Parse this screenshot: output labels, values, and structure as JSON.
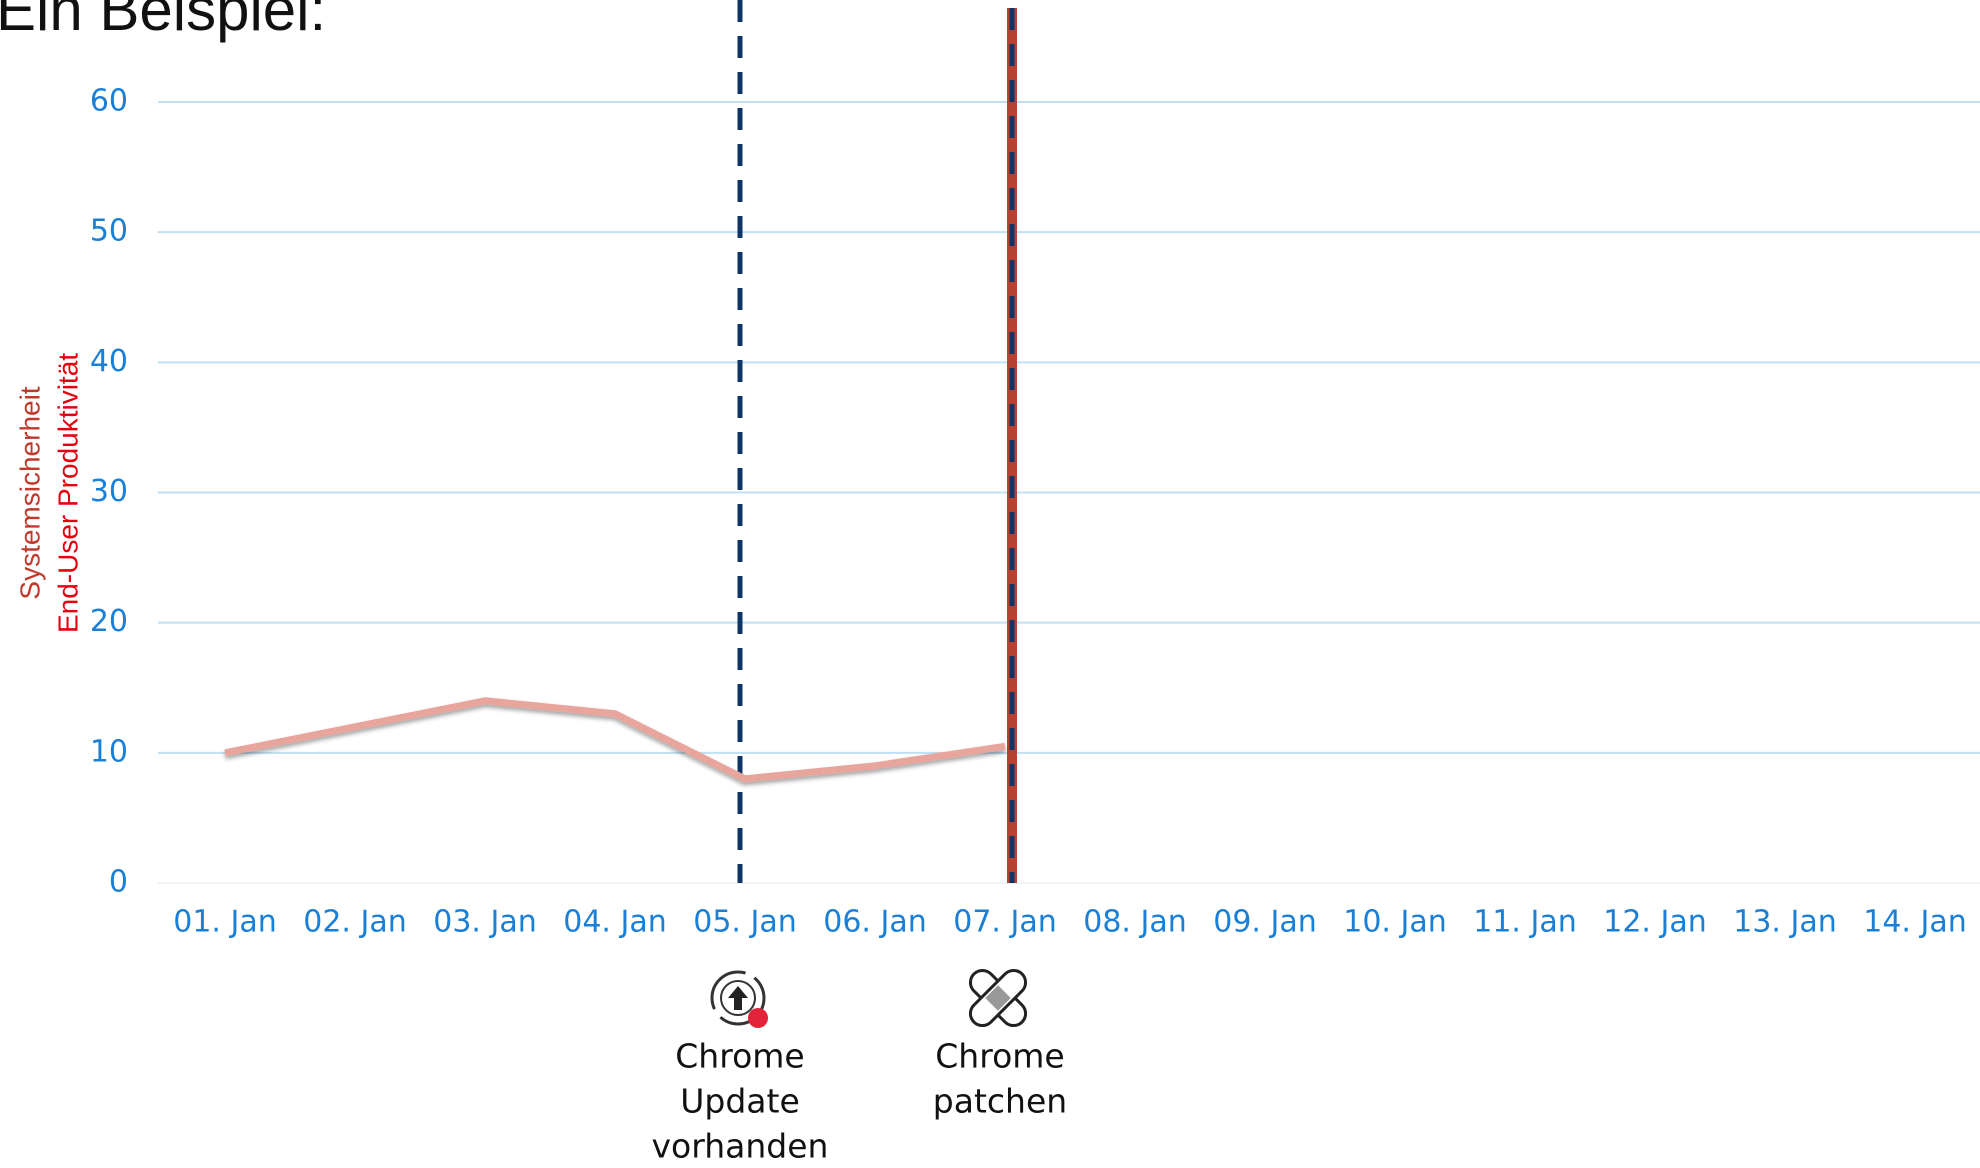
{
  "chart_data": {
    "type": "line",
    "title": "Ein Beispiel:",
    "y_labels": [
      {
        "text": "Systemsicherheit",
        "color": "#c0392b"
      },
      {
        "text": "End-User Produktivität",
        "color": "#e3000f"
      }
    ],
    "categories": [
      "01. Jan",
      "02. Jan",
      "03. Jan",
      "04. Jan",
      "05. Jan",
      "06. Jan",
      "07. Jan",
      "08. Jan",
      "09. Jan",
      "10. Jan",
      "11. Jan",
      "12. Jan",
      "13. Jan",
      "14. Jan"
    ],
    "values": [
      10,
      12,
      14,
      13,
      8,
      9,
      10.5,
      null,
      null,
      null,
      null,
      null,
      null,
      null
    ],
    "color": "#e8a59c",
    "ylim": [
      0,
      60
    ],
    "yticks": [
      0,
      10,
      20,
      30,
      40,
      50,
      60
    ],
    "grid": true,
    "annotations": [
      {
        "x": "05. Jan",
        "lines": [
          "Chrome",
          "Update",
          "vorhanden"
        ]
      },
      {
        "x": "07. Jan",
        "lines": [
          "Chrome",
          "patchen"
        ]
      }
    ]
  }
}
